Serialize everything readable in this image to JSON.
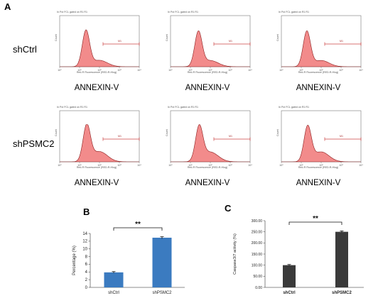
{
  "panel_a": {
    "letter": "A",
    "rows": [
      {
        "label": "shCtrl"
      },
      {
        "label": "shPSMC2"
      }
    ],
    "histogram": {
      "title": "In Pol FCL gated on R1 R1",
      "x_axis_title": "Red-R Fluorescence (RED-R-Hlog)",
      "y_axis_title": "Count",
      "marker": "M1",
      "x_ticks": [
        "10⁰",
        "10¹",
        "10²",
        "10³",
        "10⁴"
      ],
      "fill_color": "#f28b8b",
      "stroke_color": "#8a1c1c"
    },
    "x_caption": "ANNEXIN-V"
  },
  "chart_data": [
    {
      "panel": "B",
      "type": "bar",
      "categories": [
        "shCtrl",
        "shPSMC2"
      ],
      "values": [
        3.9,
        12.9
      ],
      "errors": [
        0.2,
        0.25
      ],
      "ylabel": "Percentage (%)",
      "ylim": [
        0,
        14
      ],
      "yticks": [
        0,
        2,
        4,
        6,
        8,
        10,
        12,
        14
      ],
      "significance": "**",
      "bar_color": "#3b7bc0",
      "grid": false
    },
    {
      "panel": "C",
      "type": "bar",
      "categories": [
        "shCtrl",
        "shPSMC2"
      ],
      "values": [
        100,
        250
      ],
      "errors": [
        3,
        4
      ],
      "ylabel": "Caspase3/7 activity (%)",
      "ylim": [
        0,
        300
      ],
      "yticks": [
        "0.00",
        "50.00",
        "100.00",
        "150.00",
        "200.00",
        "250.00",
        "300.00"
      ],
      "significance": "**",
      "bar_color": "#3a3a3a",
      "grid": false
    }
  ]
}
